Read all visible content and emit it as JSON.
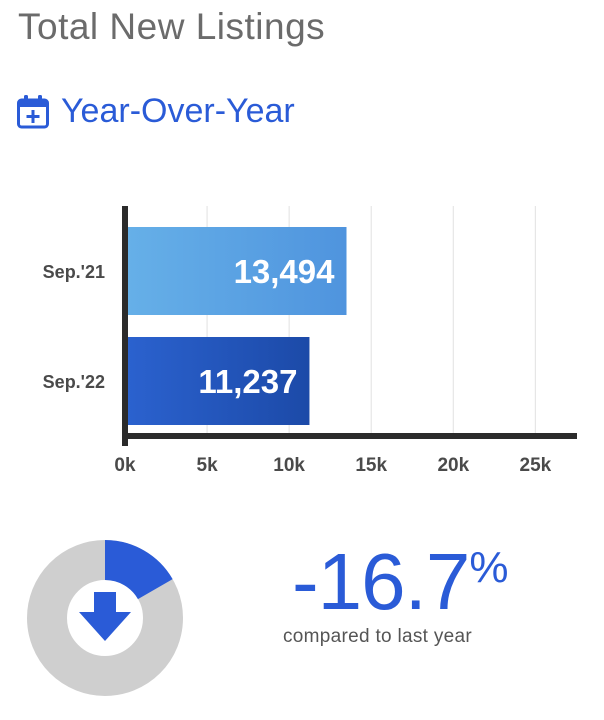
{
  "page": {
    "title": "Total New Listings",
    "section_title": "Year-Over-Year",
    "calendar_icon": "calendar-plus-icon"
  },
  "colors": {
    "accent_blue": "#2a5bd7",
    "bar_light_blue": "#64aee6",
    "bar_dark_blue": "#1f4fb3",
    "donut_gray": "#cfcfcf",
    "axis": "#2b2b2b",
    "grid": "#e6e6e6"
  },
  "chart_data": {
    "type": "bar",
    "orientation": "horizontal",
    "categories": [
      "Sep.'21",
      "Sep.'22"
    ],
    "values": [
      13494,
      11237
    ],
    "value_labels": [
      "13,494",
      "11,237"
    ],
    "xlim": [
      0,
      26500
    ],
    "xticks": [
      0,
      5000,
      10000,
      15000,
      20000,
      25000
    ],
    "xtick_labels": [
      "0k",
      "5k",
      "10k",
      "15k",
      "20k",
      "25k"
    ],
    "grid": true,
    "title": "",
    "xlabel": "",
    "ylabel": ""
  },
  "change": {
    "value_text": "-16.7",
    "percent_sign": "%",
    "label": "compared to last year",
    "fraction": 0.167,
    "direction_icon": "down-arrow-icon"
  }
}
